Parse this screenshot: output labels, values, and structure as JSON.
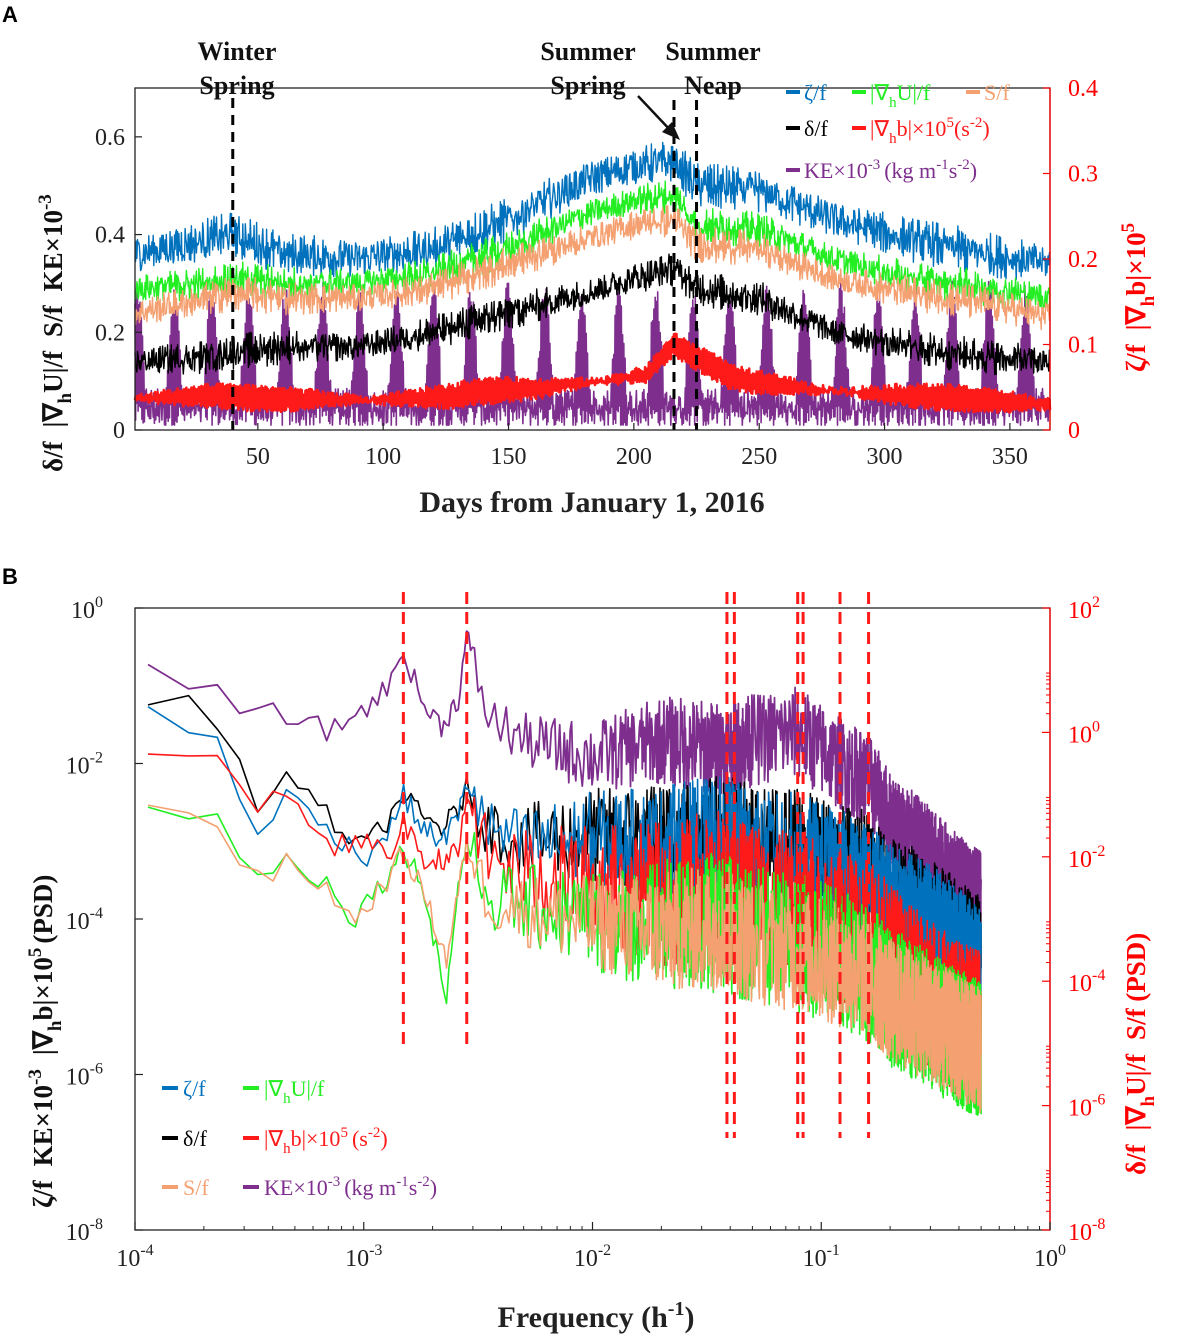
{
  "colors": {
    "zeta": "#0072BD",
    "gradU": "#22EE22",
    "S": "#F4A070",
    "delta": "#000000",
    "gradb": "#FF1A1A",
    "KE": "#7E2F8E",
    "red_axis": "#FF0000"
  },
  "legend_labels": {
    "zeta": "ζ/f",
    "gradU": "|∇",
    "gradU_sub": "h",
    "gradU_tail": "U|/f",
    "S": "S/f",
    "delta": "δ/f",
    "gradb_a": "|∇",
    "gradb_sub": "h",
    "gradb_b": "b|×10",
    "gradb_sup": "5",
    "gradb_unit_a": "(s",
    "gradb_unit_sup": "-2",
    "gradb_unit_b": ")",
    "ke_a": "KE×10",
    "ke_sup": "-3",
    "ke_unit_a": "(kg m",
    "ke_unit_sup1": "-1",
    "ke_unit_mid": "s",
    "ke_unit_sup2": "-2",
    "ke_unit_b": ")"
  },
  "chart_data": [
    {
      "panel": "A",
      "type": "line",
      "xlabel": "Days from January 1, 2016",
      "xlim": [
        1,
        366
      ],
      "xticks": [
        50,
        100,
        150,
        200,
        250,
        300,
        350
      ],
      "ylim_left": [
        0,
        0.7
      ],
      "yticks_left": [
        "0",
        "0.2",
        "0.4",
        "0.6"
      ],
      "yticks_left_values": [
        0,
        0.2,
        0.4,
        0.6
      ],
      "ylabel_left_parts": [
        "δ/f",
        "|∇",
        "h",
        "U|/f",
        "S/f",
        "KE×10",
        "-3"
      ],
      "ylim_right": [
        0,
        0.4
      ],
      "yticks_right": [
        "0",
        "0.1",
        "0.2",
        "0.3",
        "0.4"
      ],
      "yticks_right_values": [
        0,
        0.1,
        0.2,
        0.3,
        0.4
      ],
      "ylabel_right_parts": [
        "ζ/f",
        "|∇",
        "h",
        "b|×10",
        "5"
      ],
      "events": [
        {
          "day": 40,
          "label_line1": "Winter",
          "label_line2": "Spring"
        },
        {
          "day": 216,
          "label_line1": "Summer",
          "label_line2": "Spring"
        },
        {
          "day": 225,
          "label_line1": "Summer",
          "label_line2": "Neap"
        }
      ],
      "series": [
        {
          "key": "zeta",
          "axis": "left",
          "x": [
            1,
            30,
            40,
            60,
            90,
            120,
            150,
            180,
            200,
            216,
            225,
            250,
            280,
            310,
            340,
            366
          ],
          "y": [
            0.36,
            0.39,
            0.4,
            0.36,
            0.35,
            0.37,
            0.43,
            0.51,
            0.54,
            0.55,
            0.5,
            0.49,
            0.43,
            0.39,
            0.36,
            0.34
          ],
          "noise": 0.035
        },
        {
          "key": "gradU",
          "axis": "left",
          "x": [
            1,
            30,
            40,
            60,
            90,
            120,
            150,
            180,
            200,
            216,
            225,
            250,
            280,
            310,
            340,
            366
          ],
          "y": [
            0.29,
            0.3,
            0.31,
            0.3,
            0.3,
            0.32,
            0.37,
            0.44,
            0.47,
            0.48,
            0.42,
            0.41,
            0.35,
            0.31,
            0.29,
            0.27
          ],
          "noise": 0.025
        },
        {
          "key": "S",
          "axis": "left",
          "x": [
            1,
            30,
            40,
            60,
            90,
            120,
            150,
            180,
            200,
            216,
            225,
            250,
            280,
            310,
            340,
            366
          ],
          "y": [
            0.24,
            0.27,
            0.28,
            0.27,
            0.27,
            0.29,
            0.34,
            0.39,
            0.42,
            0.43,
            0.38,
            0.37,
            0.31,
            0.28,
            0.26,
            0.23
          ],
          "noise": 0.025
        },
        {
          "key": "delta",
          "axis": "left",
          "x": [
            1,
            30,
            40,
            60,
            90,
            120,
            150,
            180,
            200,
            216,
            225,
            250,
            280,
            310,
            340,
            366
          ],
          "y": [
            0.14,
            0.15,
            0.16,
            0.17,
            0.17,
            0.2,
            0.24,
            0.28,
            0.31,
            0.33,
            0.29,
            0.27,
            0.2,
            0.17,
            0.15,
            0.14
          ],
          "noise": 0.025
        },
        {
          "key": "KE",
          "axis": "left",
          "x": [
            1,
            366
          ],
          "y": [
            0.06,
            0.06
          ],
          "spring_neap_period": 14.77,
          "peak": 0.28,
          "noise": 0.05
        },
        {
          "key": "gradb",
          "axis": "right",
          "x": [
            1,
            30,
            60,
            100,
            130,
            135,
            160,
            190,
            205,
            216,
            225,
            240,
            270,
            300,
            340,
            366
          ],
          "y": [
            0.037,
            0.04,
            0.036,
            0.035,
            0.04,
            0.045,
            0.048,
            0.058,
            0.065,
            0.1,
            0.085,
            0.06,
            0.048,
            0.042,
            0.035,
            0.03
          ],
          "noise": 0.004
        }
      ]
    },
    {
      "panel": "B",
      "type": "line",
      "xlabel_a": "Frequency (h",
      "xlabel_sup": "-1",
      "xlabel_b": ")",
      "xscale": "log",
      "xlim": [
        0.0001,
        1
      ],
      "xticks": [
        0.0001,
        0.001,
        0.01,
        0.1,
        1
      ],
      "xtick_labels": [
        [
          "10",
          "-4"
        ],
        [
          "10",
          "-3"
        ],
        [
          "10",
          "-2"
        ],
        [
          "10",
          "-1"
        ],
        [
          "10",
          "0"
        ]
      ],
      "yscale_left": "log",
      "ylim_left": [
        1e-08,
        1
      ],
      "ytick_labels_left": [
        [
          "10",
          "-8"
        ],
        [
          "10",
          "-6"
        ],
        [
          "10",
          "-4"
        ],
        [
          "10",
          "-2"
        ],
        [
          "10",
          "0"
        ]
      ],
      "ytick_values_left": [
        1e-08,
        1e-06,
        0.0001,
        0.01,
        1
      ],
      "ylabel_left_parts": [
        "ζ/f",
        "KE×10",
        "-3",
        "|∇",
        "h",
        "b|×10",
        "5",
        "(PSD)"
      ],
      "yscale_right": "log",
      "ylim_right": [
        1e-08,
        100
      ],
      "ytick_labels_right": [
        [
          "10",
          "-8"
        ],
        [
          "10",
          "-6"
        ],
        [
          "10",
          "-4"
        ],
        [
          "10",
          "-2"
        ],
        [
          "10",
          "0"
        ],
        [
          "10",
          "2"
        ]
      ],
      "ytick_values_right": [
        1e-08,
        1e-06,
        0.0001,
        0.01,
        1,
        100
      ],
      "ylabel_right_parts": [
        "δ/f",
        "|∇",
        "h",
        "U|/f",
        "S/f (PSD)"
      ],
      "tidal_lines_freq": [
        0.00149,
        0.00282,
        0.0387,
        0.0417,
        0.0789,
        0.0833,
        0.1208,
        0.161
      ],
      "series": [
        {
          "key": "KE",
          "axis": "left",
          "x": [
            0.000114,
            0.000228,
            0.00034,
            0.00046,
            0.0007,
            0.001,
            0.0013,
            0.00149,
            0.0018,
            0.0022,
            0.0026,
            0.00282,
            0.0035,
            0.005,
            0.01,
            0.02,
            0.0387,
            0.05,
            0.0789,
            0.1,
            0.1208,
            0.161,
            0.2,
            0.3,
            0.4,
            0.5
          ],
          "y": [
            0.2,
            0.075,
            0.04,
            0.045,
            0.025,
            0.05,
            0.1,
            0.3,
            0.06,
            0.03,
            0.07,
            0.45,
            0.04,
            0.02,
            0.012,
            0.02,
            0.015,
            0.02,
            0.025,
            0.015,
            0.01,
            0.006,
            0.002,
            0.0007,
            0.0003,
            0.0002
          ],
          "noise": 0.6
        },
        {
          "key": "delta",
          "axis": "left",
          "x": [
            0.000114,
            0.000228,
            0.00034,
            0.00046,
            0.0007,
            0.001,
            0.0013,
            0.00149,
            0.0018,
            0.0022,
            0.0026,
            0.00282,
            0.0035,
            0.005,
            0.01,
            0.02,
            0.0387,
            0.05,
            0.0789,
            0.1,
            0.1208,
            0.161,
            0.2,
            0.3,
            0.4,
            0.5
          ],
          "y": [
            0.08,
            0.04,
            0.003,
            0.007,
            0.002,
            0.0008,
            0.002,
            0.004,
            0.002,
            0.0015,
            0.0025,
            0.005,
            0.0015,
            0.001,
            0.0012,
            0.001,
            0.0012,
            0.0008,
            0.0008,
            0.0006,
            0.0005,
            0.0004,
            0.0002,
            0.0001,
            5e-05,
            3e-05
          ],
          "noise": 0.8
        },
        {
          "key": "zeta",
          "axis": "left",
          "x": [
            0.000114,
            0.000228,
            0.00034,
            0.00046,
            0.0007,
            0.001,
            0.0013,
            0.00149,
            0.0018,
            0.0022,
            0.0026,
            0.00282,
            0.0035,
            0.005,
            0.01,
            0.02,
            0.0387,
            0.05,
            0.0789,
            0.1,
            0.1208,
            0.161,
            0.2,
            0.3,
            0.4,
            0.5
          ],
          "y": [
            0.05,
            0.025,
            0.0009,
            0.004,
            0.0015,
            0.0006,
            0.0014,
            0.004,
            0.0015,
            0.001,
            0.0022,
            0.006,
            0.0014,
            0.0009,
            0.0011,
            0.0009,
            0.0011,
            0.0007,
            0.0007,
            0.0005,
            0.0004,
            0.0003,
            0.00015,
            8e-05,
            4e-05,
            2e-05
          ],
          "noise": 0.8
        },
        {
          "key": "gradb",
          "axis": "left",
          "x": [
            0.000114,
            0.000228,
            0.00034,
            0.00046,
            0.0007,
            0.001,
            0.0013,
            0.00149,
            0.0018,
            0.0022,
            0.0026,
            0.00282,
            0.0035,
            0.005,
            0.01,
            0.02,
            0.0387,
            0.05,
            0.0789,
            0.1,
            0.1208,
            0.161,
            0.2,
            0.3,
            0.4,
            0.5
          ],
          "y": [
            0.016,
            0.01,
            0.003,
            0.005,
            0.0008,
            0.001,
            0.0006,
            0.002,
            0.0005,
            0.0006,
            0.0007,
            0.004,
            0.0006,
            0.0004,
            0.0003,
            0.0002,
            0.00025,
            0.00015,
            0.00015,
            0.0001,
            8e-05,
            6e-05,
            3e-05,
            1e-05,
            5e-06,
            4e-06
          ],
          "noise": 1.0
        },
        {
          "key": "gradU",
          "axis": "left",
          "x": [
            0.000114,
            0.000228,
            0.00034,
            0.00046,
            0.0007,
            0.0009,
            0.0013,
            0.00149,
            0.0018,
            0.0023,
            0.0026,
            0.00282,
            0.0035,
            0.005,
            0.01,
            0.02,
            0.0387,
            0.05,
            0.0789,
            0.1,
            0.1208,
            0.161,
            0.2,
            0.3,
            0.4,
            0.5
          ],
          "y": [
            0.0035,
            0.002,
            0.00035,
            0.00055,
            0.0003,
            0.0001,
            0.0004,
            0.0008,
            0.0003,
            1e-05,
            0.0003,
            0.001,
            0.0002,
            0.00015,
            0.0001,
            8e-05,
            9e-05,
            6e-05,
            5e-05,
            4e-05,
            3e-05,
            2e-05,
            1e-05,
            5e-06,
            3e-06,
            2e-06
          ],
          "noise": 0.9
        },
        {
          "key": "S",
          "axis": "left",
          "x": [
            0.000114,
            0.000228,
            0.00034,
            0.00046,
            0.0007,
            0.0009,
            0.0013,
            0.00149,
            0.0018,
            0.0023,
            0.0026,
            0.00282,
            0.0035,
            0.005,
            0.01,
            0.02,
            0.0387,
            0.05,
            0.0789,
            0.1,
            0.1208,
            0.161,
            0.2,
            0.3,
            0.4,
            0.5
          ],
          "y": [
            0.003,
            0.0018,
            0.0003,
            0.0005,
            0.00025,
            9e-05,
            0.00035,
            0.0007,
            0.00025,
            3e-05,
            0.00025,
            0.0009,
            0.00018,
            0.00013,
            9e-05,
            7e-05,
            8e-05,
            5e-05,
            4e-05,
            3e-05,
            2.5e-05,
            1.8e-05,
            9e-06,
            5e-06,
            3e-06,
            2e-06
          ],
          "noise": 0.8
        }
      ]
    }
  ]
}
